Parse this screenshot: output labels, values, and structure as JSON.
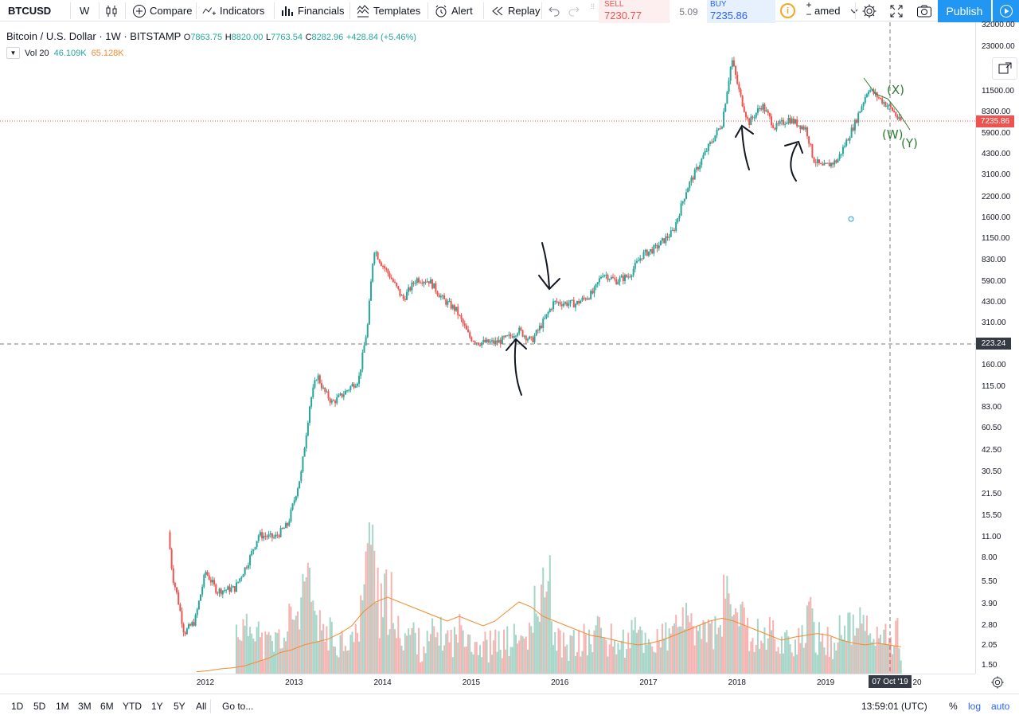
{
  "toolbar": {
    "symbol": "BTCUSD",
    "interval": "W",
    "compare": "Compare",
    "indicators": "Indicators",
    "financials": "Financials",
    "templates": "Templates",
    "alert": "Alert",
    "replay": "Replay",
    "layout_name": "amed",
    "publish": "Publish"
  },
  "trade": {
    "sell_label": "SELL",
    "sell_price": "7230.77",
    "spread": "5.09",
    "buy_label": "BUY",
    "buy_price": "7235.86"
  },
  "legend": {
    "title": "Bitcoin / U.S. Dollar · 1W · BITSTAMP",
    "open_label": "O",
    "open": "7863.75",
    "high_label": "H",
    "high": "8820.00",
    "low_label": "L",
    "low": "7763.54",
    "close_label": "C",
    "close": "8282.96",
    "change": "+428.84 (+5.46%)",
    "vol_label": "Vol 20",
    "vol_value": "46.109K",
    "vol_ma": "65.128K"
  },
  "colors": {
    "up": "#26a69a",
    "down": "#ef5350",
    "up_volume": "#a5d6c8",
    "down_volume": "#f5b3b1",
    "vol_ma": "#f28b30",
    "accent": "#2196f3",
    "annotation_green": "#2e7d32"
  },
  "price_axis": {
    "ticks": [
      "32000.00",
      "23000.00",
      "11500.00",
      "8300.00",
      "5900.00",
      "4300.00",
      "3100.00",
      "2200.00",
      "1600.00",
      "1150.00",
      "830.00",
      "590.00",
      "430.00",
      "310.00",
      "160.00",
      "115.00",
      "83.00",
      "60.50",
      "42.50",
      "30.50",
      "21.50",
      "15.50",
      "11.00",
      "8.00",
      "5.50",
      "3.90",
      "2.80",
      "2.05",
      "1.50"
    ],
    "last_price": "7235.86",
    "crosshair_price": "223.24"
  },
  "time_axis": {
    "ticks": [
      "2012",
      "2013",
      "2014",
      "2015",
      "2016",
      "2017",
      "2018",
      "2019",
      "20"
    ],
    "crosshair_date": "07 Oct '19"
  },
  "annotations": {
    "wave_x": "(X)",
    "wave_w": "(W)",
    "wave_y": "(Y)"
  },
  "bottombar": {
    "ranges": [
      "1D",
      "5D",
      "1M",
      "3M",
      "6M",
      "YTD",
      "1Y",
      "5Y",
      "All"
    ],
    "goto": "Go to...",
    "clock": "13:59:01 (UTC)",
    "percent": "%",
    "log": "log",
    "auto": "auto"
  },
  "chart_data": {
    "type": "candlestick",
    "title": "Bitcoin / U.S. Dollar · 1W · BITSTAMP",
    "scale": "log",
    "ylim": [
      1.5,
      32000
    ],
    "x_range": [
      "2011-08",
      "2019-11"
    ],
    "grid": false,
    "path_points": [
      {
        "t": 2011.6,
        "v": 12.0
      },
      {
        "t": 2011.65,
        "v": 6.0
      },
      {
        "t": 2011.7,
        "v": 4.5
      },
      {
        "t": 2011.78,
        "v": 2.5
      },
      {
        "t": 2011.9,
        "v": 3.0
      },
      {
        "t": 2012.02,
        "v": 6.5
      },
      {
        "t": 2012.15,
        "v": 4.8
      },
      {
        "t": 2012.35,
        "v": 5.0
      },
      {
        "t": 2012.5,
        "v": 7.5
      },
      {
        "t": 2012.62,
        "v": 11.5
      },
      {
        "t": 2012.8,
        "v": 11.0
      },
      {
        "t": 2012.95,
        "v": 13.5
      },
      {
        "t": 2013.1,
        "v": 30.0
      },
      {
        "t": 2013.2,
        "v": 90.0
      },
      {
        "t": 2013.28,
        "v": 140.0
      },
      {
        "t": 2013.35,
        "v": 110.0
      },
      {
        "t": 2013.45,
        "v": 90.0
      },
      {
        "t": 2013.55,
        "v": 100.0
      },
      {
        "t": 2013.75,
        "v": 130.0
      },
      {
        "t": 2013.85,
        "v": 300.0
      },
      {
        "t": 2013.92,
        "v": 1000.0
      },
      {
        "t": 2014.0,
        "v": 800.0
      },
      {
        "t": 2014.1,
        "v": 650.0
      },
      {
        "t": 2014.25,
        "v": 450.0
      },
      {
        "t": 2014.4,
        "v": 620.0
      },
      {
        "t": 2014.55,
        "v": 600.0
      },
      {
        "t": 2014.7,
        "v": 450.0
      },
      {
        "t": 2014.85,
        "v": 380.0
      },
      {
        "t": 2015.0,
        "v": 250.0
      },
      {
        "t": 2015.1,
        "v": 230.0
      },
      {
        "t": 2015.3,
        "v": 230.0
      },
      {
        "t": 2015.45,
        "v": 250.0
      },
      {
        "t": 2015.55,
        "v": 280.0
      },
      {
        "t": 2015.7,
        "v": 235.0
      },
      {
        "t": 2015.85,
        "v": 330.0
      },
      {
        "t": 2015.95,
        "v": 430.0
      },
      {
        "t": 2016.2,
        "v": 420.0
      },
      {
        "t": 2016.4,
        "v": 500.0
      },
      {
        "t": 2016.5,
        "v": 680.0
      },
      {
        "t": 2016.65,
        "v": 600.0
      },
      {
        "t": 2016.8,
        "v": 650.0
      },
      {
        "t": 2016.95,
        "v": 900.0
      },
      {
        "t": 2017.1,
        "v": 1000.0
      },
      {
        "t": 2017.3,
        "v": 1300.0
      },
      {
        "t": 2017.45,
        "v": 2500.0
      },
      {
        "t": 2017.65,
        "v": 4300.0
      },
      {
        "t": 2017.85,
        "v": 7000.0
      },
      {
        "t": 2017.96,
        "v": 19000.0
      },
      {
        "t": 2018.05,
        "v": 11000.0
      },
      {
        "t": 2018.15,
        "v": 7000.0
      },
      {
        "t": 2018.3,
        "v": 9300.0
      },
      {
        "t": 2018.45,
        "v": 6500.0
      },
      {
        "t": 2018.6,
        "v": 7500.0
      },
      {
        "t": 2018.8,
        "v": 6400.0
      },
      {
        "t": 2018.88,
        "v": 4000.0
      },
      {
        "t": 2018.98,
        "v": 3500.0
      },
      {
        "t": 2019.15,
        "v": 3900.0
      },
      {
        "t": 2019.35,
        "v": 7000.0
      },
      {
        "t": 2019.5,
        "v": 12000.0
      },
      {
        "t": 2019.65,
        "v": 10000.0
      },
      {
        "t": 2019.78,
        "v": 8500.0
      },
      {
        "t": 2019.85,
        "v": 7235.0
      }
    ],
    "volume_ma": [
      0.2,
      0.3,
      0.5,
      0.6,
      0.8,
      1.2,
      1.6,
      2.2,
      2.5,
      3.0,
      3.3,
      3.6,
      4.2,
      5.0,
      6.5,
      7.5,
      8.0,
      7.5,
      7.0,
      6.5,
      6.0,
      5.5,
      6.0,
      5.5,
      5.0,
      5.5,
      6.5,
      7.5,
      7.0,
      6.0,
      5.5,
      5.0,
      4.5,
      4.0,
      3.8,
      3.5,
      3.2,
      3.0,
      3.2,
      3.5,
      4.0,
      4.5,
      5.0,
      5.5,
      5.8,
      5.5,
      5.0,
      4.5,
      4.0,
      3.5,
      3.8,
      4.0,
      4.2,
      4.0,
      3.5,
      3.2,
      3.0,
      3.2,
      3.0,
      2.8
    ]
  }
}
